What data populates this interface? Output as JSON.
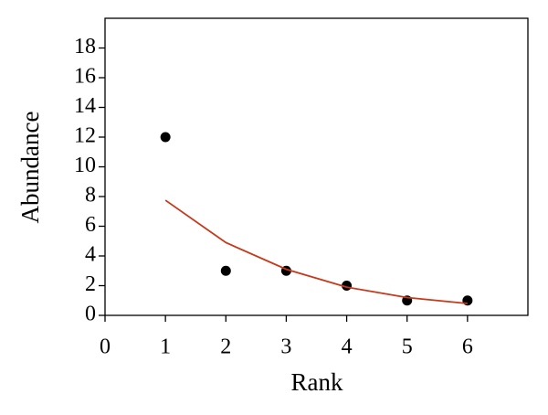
{
  "chart_data": {
    "type": "scatter",
    "xlabel": "Rank",
    "ylabel": "Abundance",
    "x": [
      1,
      2,
      3,
      4,
      5,
      6
    ],
    "series": [
      {
        "type": "scatter",
        "color": "#000000",
        "values": [
          12,
          3,
          3,
          2,
          1,
          1
        ]
      },
      {
        "type": "line",
        "color": "#c8381a",
        "values": [
          7.75,
          4.9,
          3.1,
          1.9,
          1.2,
          0.8
        ]
      }
    ],
    "xlim": [
      0,
      7
    ],
    "xticks": [
      0,
      1,
      2,
      3,
      4,
      5,
      6
    ],
    "ylim": [
      0,
      20
    ],
    "yticks": [
      0,
      2,
      4,
      6,
      8,
      10,
      12,
      14,
      16,
      18
    ],
    "grid": false
  }
}
